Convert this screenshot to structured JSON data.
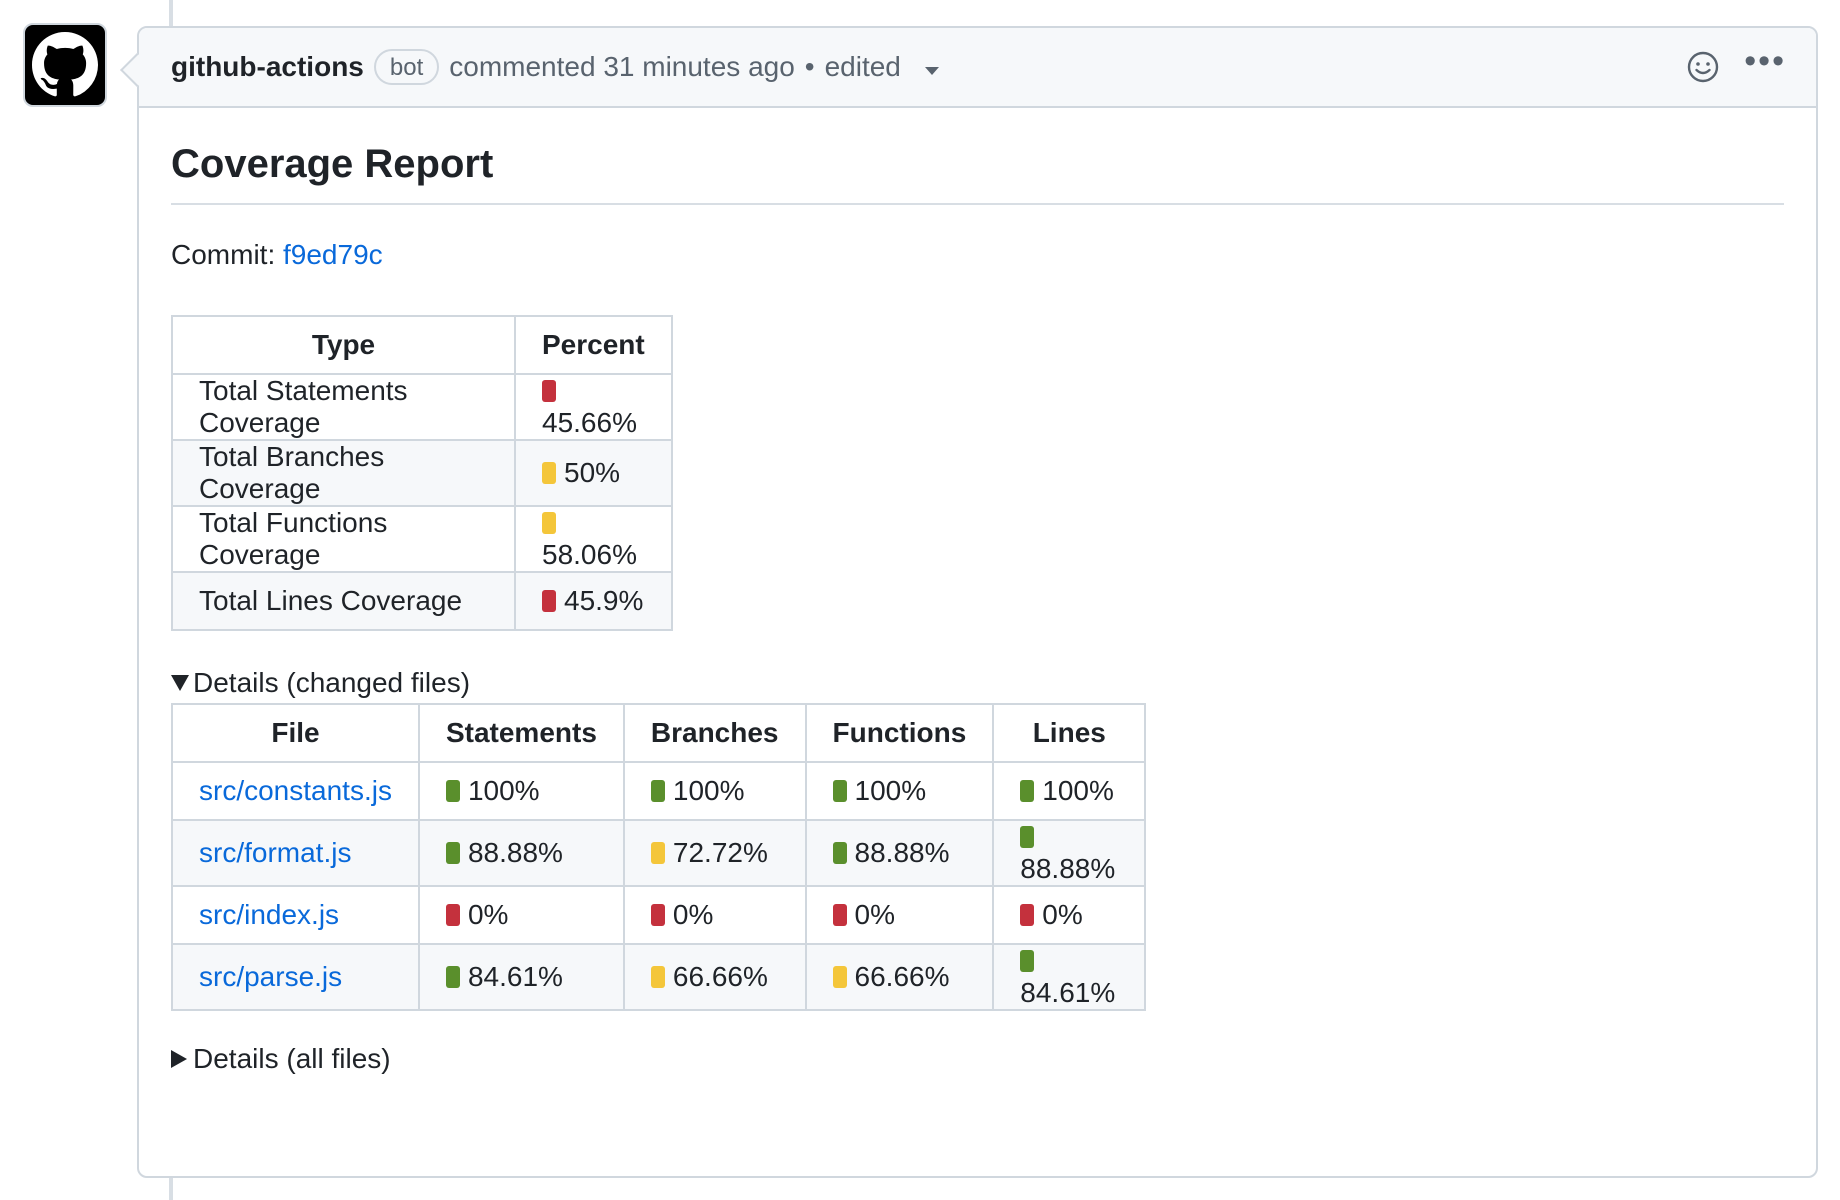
{
  "comment": {
    "author": "github-actions",
    "badge": "bot",
    "meta": "commented 31 minutes ago",
    "separator": "•",
    "edited": "edited"
  },
  "report": {
    "title": "Coverage Report",
    "commit_label": "Commit: ",
    "commit_hash": "f9ed79c"
  },
  "summary_table": {
    "headers": [
      "Type",
      "Percent"
    ],
    "rows": [
      {
        "type": "Total Statements Coverage",
        "percent": "45.66%",
        "status": "red"
      },
      {
        "type": "Total Branches Coverage",
        "percent": "50%",
        "status": "yellow"
      },
      {
        "type": "Total Functions Coverage",
        "percent": "58.06%",
        "status": "yellow"
      },
      {
        "type": "Total Lines Coverage",
        "percent": "45.9%",
        "status": "red"
      }
    ]
  },
  "details_changed": {
    "summary": "Details (changed files)",
    "headers": [
      "File",
      "Statements",
      "Branches",
      "Functions",
      "Lines"
    ],
    "rows": [
      {
        "file": "src/constants.js",
        "cells": [
          {
            "v": "100%",
            "s": "green"
          },
          {
            "v": "100%",
            "s": "green"
          },
          {
            "v": "100%",
            "s": "green"
          },
          {
            "v": "100%",
            "s": "green"
          }
        ]
      },
      {
        "file": "src/format.js",
        "cells": [
          {
            "v": "88.88%",
            "s": "green"
          },
          {
            "v": "72.72%",
            "s": "yellow"
          },
          {
            "v": "88.88%",
            "s": "green"
          },
          {
            "v": "88.88%",
            "s": "green"
          }
        ]
      },
      {
        "file": "src/index.js",
        "cells": [
          {
            "v": "0%",
            "s": "red"
          },
          {
            "v": "0%",
            "s": "red"
          },
          {
            "v": "0%",
            "s": "red"
          },
          {
            "v": "0%",
            "s": "red"
          }
        ]
      },
      {
        "file": "src/parse.js",
        "cells": [
          {
            "v": "84.61%",
            "s": "green"
          },
          {
            "v": "66.66%",
            "s": "yellow"
          },
          {
            "v": "66.66%",
            "s": "yellow"
          },
          {
            "v": "84.61%",
            "s": "green"
          }
        ]
      }
    ]
  },
  "details_all": {
    "summary": "Details (all files)"
  },
  "icons": {
    "avatar": "github-mark-icon",
    "reaction": "smiley-icon",
    "more": "kebab-horizontal-icon",
    "status_colors": {
      "red": "#c4313d",
      "yellow": "#f4c63a",
      "green": "#5a8f2c"
    }
  }
}
